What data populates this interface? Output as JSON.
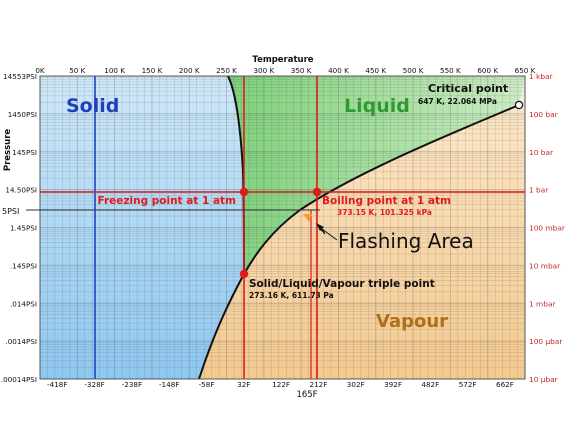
{
  "axes": {
    "top_title": "Temperature",
    "left_title": "Pressure",
    "top_ticks": [
      "0K",
      "50 K",
      "100 K",
      "150 K",
      "200 K",
      "250 K",
      "300 K",
      "350 K",
      "400 K",
      "450 K",
      "500 K",
      "550 K",
      "600 K",
      "650 K"
    ],
    "bottom_ticks": [
      "-418F",
      "-328F",
      "-238F",
      "-148F",
      "-58F",
      "32F",
      "122F",
      "212F",
      "302F",
      "392F",
      "482F",
      "572F",
      "662F"
    ],
    "bottom_extra": "165F",
    "left_ticks": [
      "14553PSI",
      "1450PSI",
      "145PSI",
      "14.50PSI",
      "1.45PSI",
      ".145PSI",
      ".014PSI",
      ".0014PSI",
      ".00014PSI"
    ],
    "left_extra": "5PSI",
    "right_ticks": [
      "1 kbar",
      "100 bar",
      "10 bar",
      "1 bar",
      "100 mbar",
      "10 mbar",
      "1 mbar",
      "100 µbar",
      "10 µbar"
    ]
  },
  "regions": {
    "solid": "Solid",
    "liquid": "Liquid",
    "vapour": "Vapour"
  },
  "annotations": {
    "critical_title": "Critical point",
    "critical_value": "647 K, 22.064 MPa",
    "freezing": "Freezing point at 1 atm",
    "boiling_title": "Boiling point at 1 atm",
    "boiling_value": "373.15 K, 101.325 kPa",
    "flashing": "Flashing Area",
    "triple_title": "Solid/Liquid/Vapour triple point",
    "triple_value": "273.16 K, 611.73 Pa"
  },
  "colors": {
    "solid_fill": "#a9d3f2",
    "liquid_fill": "#a8dc9e",
    "vapour_fill": "#f6d7a8",
    "solid_text": "#1f3fbf",
    "liquid_text": "#2f9a2f",
    "vapour_text": "#b07018",
    "marker": "#e01b1b",
    "right_axis": "#c62828"
  }
}
